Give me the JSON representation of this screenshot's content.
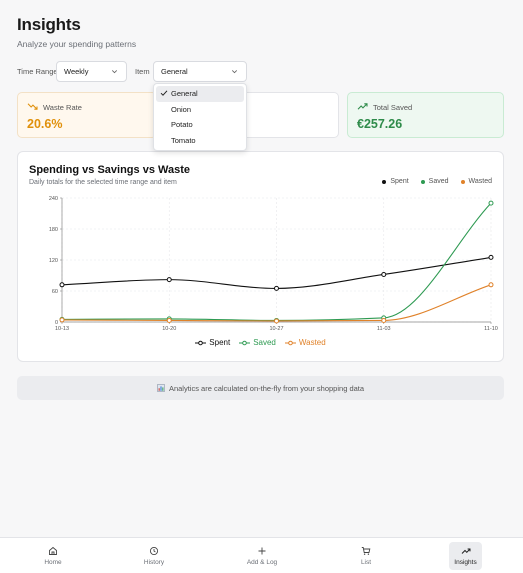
{
  "header": {
    "title": "Insights",
    "subtitle": "Analyze your spending patterns"
  },
  "filters": {
    "time_range_label": "Time Range",
    "time_range_value": "Weekly",
    "item_label": "Item",
    "item_value": "General"
  },
  "dropdown": {
    "options": [
      "General",
      "Onion",
      "Potato",
      "Tomato"
    ],
    "selected": "General"
  },
  "cards": {
    "waste_rate": {
      "label": "Waste Rate",
      "value": "20.6%",
      "color": "#e0900a"
    },
    "total_saved": {
      "label": "Total Saved",
      "value": "€257.26",
      "color": "#2e8b4a"
    }
  },
  "chart_data": {
    "type": "line",
    "title": "Spending vs Savings vs Waste",
    "subtitle": "Daily totals for the selected time range and item",
    "categories": [
      "10-13",
      "10-20",
      "10-27",
      "11-03",
      "11-10"
    ],
    "y_ticks": [
      "0",
      "60",
      "120",
      "180",
      "240"
    ],
    "ylim": [
      0,
      240
    ],
    "grid": true,
    "legend_position": "top-right",
    "series": [
      {
        "name": "Spent",
        "color": "#111111",
        "values": [
          72,
          82,
          65,
          92,
          125
        ]
      },
      {
        "name": "Saved",
        "color": "#2e9a52",
        "values": [
          5,
          6,
          3,
          8,
          230
        ]
      },
      {
        "name": "Wasted",
        "color": "#e0822a",
        "values": [
          4,
          3,
          2,
          3,
          72
        ]
      }
    ]
  },
  "info": {
    "icon": "chart-emoji",
    "text": "Analytics are calculated on-the-fly from your shopping data"
  },
  "nav": {
    "items": [
      {
        "label": "Home",
        "icon": "home-icon"
      },
      {
        "label": "History",
        "icon": "history-icon"
      },
      {
        "label": "Add & Log",
        "icon": "plus-icon"
      },
      {
        "label": "List",
        "icon": "cart-icon"
      },
      {
        "label": "Insights",
        "icon": "trend-icon"
      }
    ],
    "active": "Insights"
  }
}
